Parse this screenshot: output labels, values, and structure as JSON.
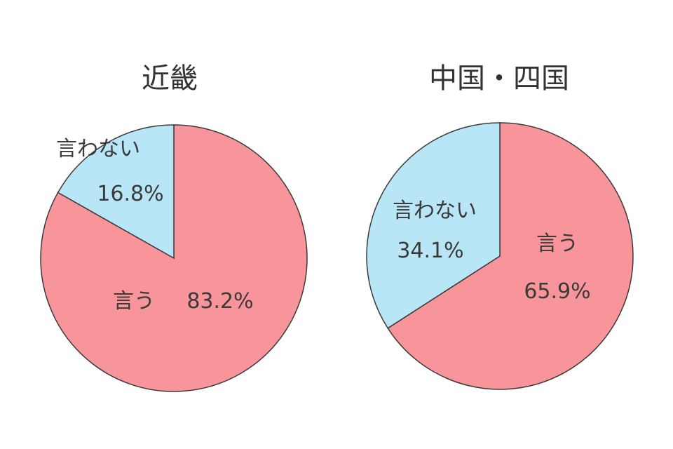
{
  "chart_data": [
    {
      "type": "pie",
      "title": "近畿",
      "slices": [
        {
          "label": "言う",
          "value": 83.2,
          "value_label": "83.2%",
          "color": "#f8959b"
        },
        {
          "label": "言わない",
          "value": 16.8,
          "value_label": "16.8%",
          "color": "#b8e6f6"
        }
      ]
    },
    {
      "type": "pie",
      "title": "中国・四国",
      "slices": [
        {
          "label": "言う",
          "value": 65.9,
          "value_label": "65.9%",
          "color": "#f8959b"
        },
        {
          "label": "言わない",
          "value": 34.1,
          "value_label": "34.1%",
          "color": "#b8e6f6"
        }
      ]
    }
  ]
}
